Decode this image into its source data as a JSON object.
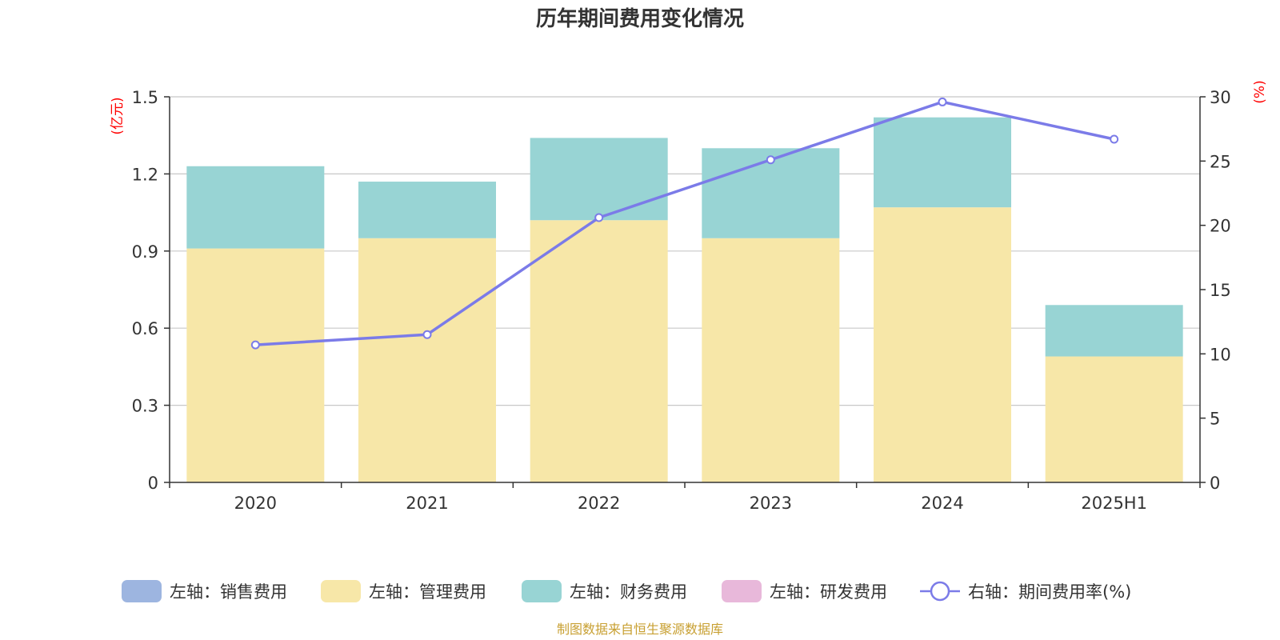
{
  "chart_data": {
    "type": "bar",
    "title": "历年期间费用变化情况",
    "left_unit": "(亿元)",
    "right_unit": "(%)",
    "categories": [
      "2020",
      "2021",
      "2022",
      "2023",
      "2024",
      "2025H1"
    ],
    "left_axis": {
      "ylim": [
        0,
        1.5
      ],
      "ticks": [
        "0",
        "0.3",
        "0.6",
        "0.9",
        "1.2",
        "1.5"
      ]
    },
    "right_axis": {
      "ylim": [
        0,
        30
      ],
      "ticks": [
        "0",
        "5",
        "10",
        "15",
        "20",
        "25",
        "30"
      ]
    },
    "grid": true,
    "legend_position": "bottom",
    "stack": true,
    "series": [
      {
        "name": "左轴：销售费用",
        "type": "bar",
        "axis": "left",
        "color": "#9db5e0",
        "values": [
          0,
          0,
          0,
          0,
          0,
          0
        ]
      },
      {
        "name": "左轴：管理费用",
        "type": "bar",
        "axis": "left",
        "color": "#f7e7a8",
        "values": [
          0.91,
          0.95,
          1.02,
          0.95,
          1.07,
          0.49
        ]
      },
      {
        "name": "左轴：财务费用",
        "type": "bar",
        "axis": "left",
        "color": "#98d4d4",
        "values": [
          0.32,
          0.22,
          0.32,
          0.35,
          0.35,
          0.2
        ]
      },
      {
        "name": "左轴：研发费用",
        "type": "bar",
        "axis": "left",
        "color": "#e8b8da",
        "values": [
          0,
          0,
          0,
          0,
          0,
          0
        ]
      },
      {
        "name": "右轴：期间费用率(%)",
        "type": "line",
        "axis": "right",
        "color": "#7b7be8",
        "values": [
          10.7,
          11.5,
          20.6,
          25.1,
          29.6,
          26.7
        ]
      }
    ]
  },
  "source": "制图数据来自恒生聚源数据库"
}
